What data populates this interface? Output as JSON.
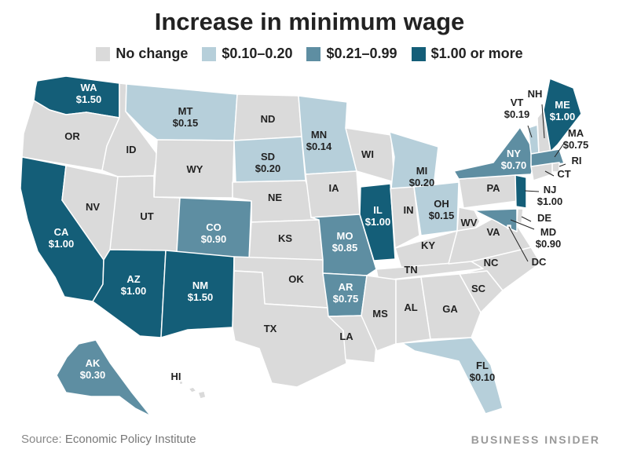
{
  "title": "Increase in minimum wage",
  "legend": [
    {
      "label": "No change",
      "color": "#dadada"
    },
    {
      "label": "$0.10–0.20",
      "color": "#b6cfda"
    },
    {
      "label": "$0.21–0.99",
      "color": "#5e8ea2"
    },
    {
      "label": "$1.00 or more",
      "color": "#145e78"
    }
  ],
  "states": [
    {
      "abbr": "WA",
      "value": "$1.50",
      "tier": 3
    },
    {
      "abbr": "OR",
      "value": "",
      "tier": 0
    },
    {
      "abbr": "CA",
      "value": "$1.00",
      "tier": 3
    },
    {
      "abbr": "NV",
      "value": "",
      "tier": 0
    },
    {
      "abbr": "ID",
      "value": "",
      "tier": 0
    },
    {
      "abbr": "MT",
      "value": "$0.15",
      "tier": 1
    },
    {
      "abbr": "WY",
      "value": "",
      "tier": 0
    },
    {
      "abbr": "UT",
      "value": "",
      "tier": 0
    },
    {
      "abbr": "AZ",
      "value": "$1.00",
      "tier": 3
    },
    {
      "abbr": "CO",
      "value": "$0.90",
      "tier": 2
    },
    {
      "abbr": "NM",
      "value": "$1.50",
      "tier": 3
    },
    {
      "abbr": "ND",
      "value": "",
      "tier": 0
    },
    {
      "abbr": "SD",
      "value": "$0.20",
      "tier": 1
    },
    {
      "abbr": "NE",
      "value": "",
      "tier": 0
    },
    {
      "abbr": "KS",
      "value": "",
      "tier": 0
    },
    {
      "abbr": "OK",
      "value": "",
      "tier": 0
    },
    {
      "abbr": "TX",
      "value": "",
      "tier": 0
    },
    {
      "abbr": "MN",
      "value": "$0.14",
      "tier": 1
    },
    {
      "abbr": "IA",
      "value": "",
      "tier": 0
    },
    {
      "abbr": "MO",
      "value": "$0.85",
      "tier": 2
    },
    {
      "abbr": "AR",
      "value": "$0.75",
      "tier": 2
    },
    {
      "abbr": "LA",
      "value": "",
      "tier": 0
    },
    {
      "abbr": "WI",
      "value": "",
      "tier": 0
    },
    {
      "abbr": "IL",
      "value": "$1.00",
      "tier": 3
    },
    {
      "abbr": "MI",
      "value": "$0.20",
      "tier": 1
    },
    {
      "abbr": "IN",
      "value": "",
      "tier": 0
    },
    {
      "abbr": "OH",
      "value": "$0.15",
      "tier": 1
    },
    {
      "abbr": "KY",
      "value": "",
      "tier": 0
    },
    {
      "abbr": "TN",
      "value": "",
      "tier": 0
    },
    {
      "abbr": "MS",
      "value": "",
      "tier": 0
    },
    {
      "abbr": "AL",
      "value": "",
      "tier": 0
    },
    {
      "abbr": "GA",
      "value": "",
      "tier": 0
    },
    {
      "abbr": "FL",
      "value": "$0.10",
      "tier": 1
    },
    {
      "abbr": "SC",
      "value": "",
      "tier": 0
    },
    {
      "abbr": "NC",
      "value": "",
      "tier": 0
    },
    {
      "abbr": "VA",
      "value": "",
      "tier": 0
    },
    {
      "abbr": "WV",
      "value": "",
      "tier": 0
    },
    {
      "abbr": "PA",
      "value": "",
      "tier": 0
    },
    {
      "abbr": "NY",
      "value": "$0.70",
      "tier": 2
    },
    {
      "abbr": "VT",
      "value": "$0.19",
      "tier": 1
    },
    {
      "abbr": "NH",
      "value": "",
      "tier": 0
    },
    {
      "abbr": "ME",
      "value": "$1.00",
      "tier": 3
    },
    {
      "abbr": "MA",
      "value": "$0.75",
      "tier": 2
    },
    {
      "abbr": "RI",
      "value": "",
      "tier": 0
    },
    {
      "abbr": "CT",
      "value": "",
      "tier": 0
    },
    {
      "abbr": "NJ",
      "value": "$1.00",
      "tier": 3
    },
    {
      "abbr": "DE",
      "value": "",
      "tier": 0
    },
    {
      "abbr": "MD",
      "value": "$0.90",
      "tier": 2
    },
    {
      "abbr": "DC",
      "value": "",
      "tier": 0
    },
    {
      "abbr": "AK",
      "value": "$0.30",
      "tier": 2
    },
    {
      "abbr": "HI",
      "value": "",
      "tier": 0
    }
  ],
  "source": {
    "label": "Source:",
    "text": "Economic Policy Institute"
  },
  "brand": "BUSINESS INSIDER"
}
